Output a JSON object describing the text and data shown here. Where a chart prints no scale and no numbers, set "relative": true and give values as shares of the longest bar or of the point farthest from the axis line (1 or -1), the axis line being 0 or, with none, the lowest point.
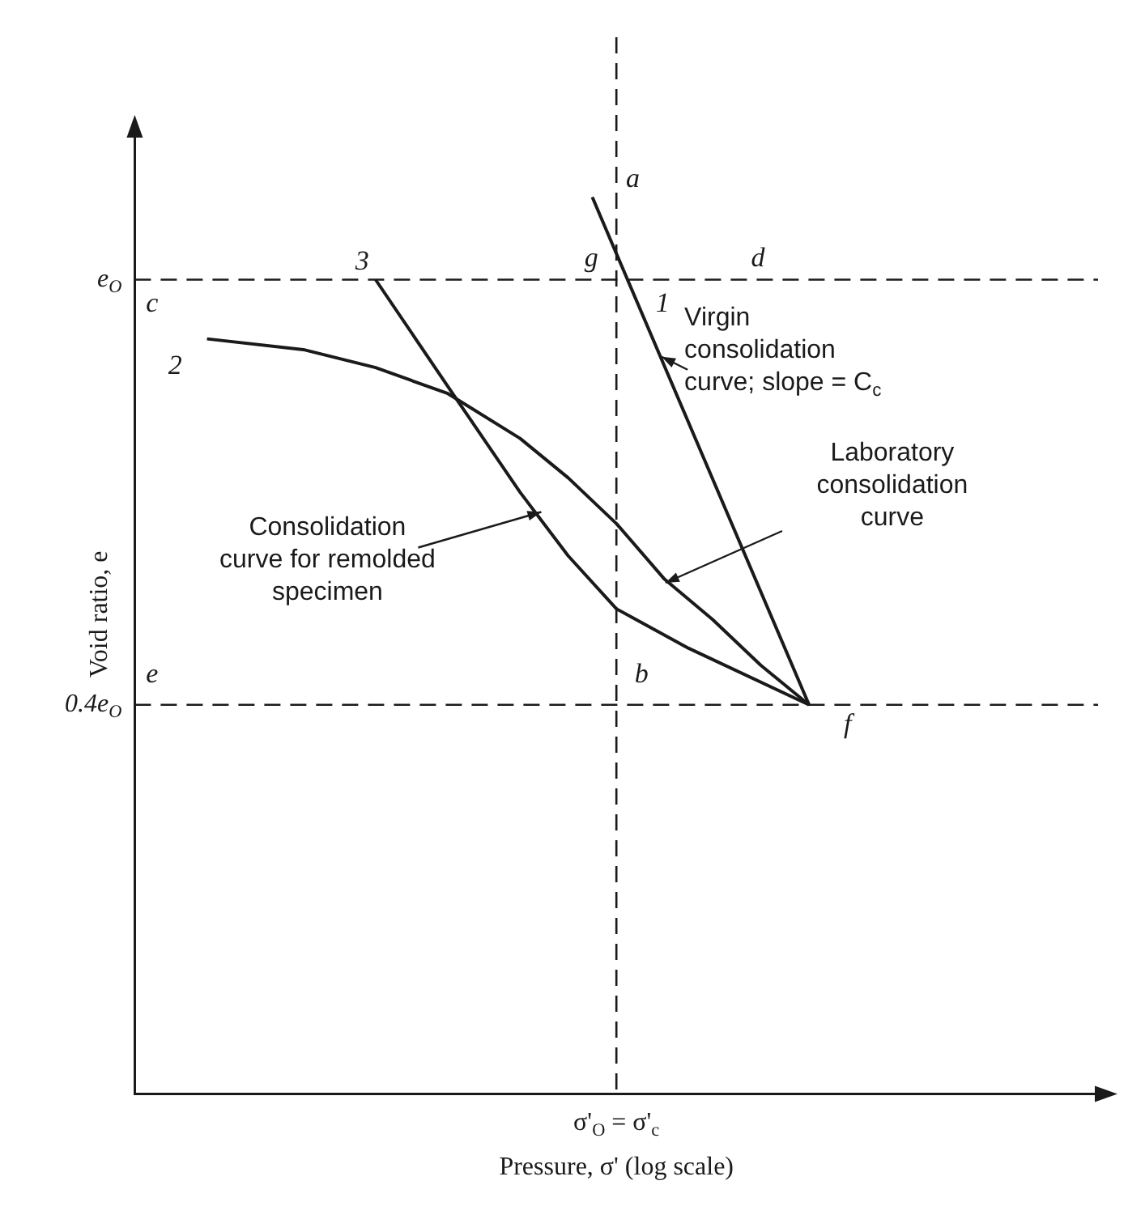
{
  "chart_data": {
    "type": "line",
    "xlabel": "Pressure, σ' (log scale)",
    "ylabel": "Void ratio, e",
    "relative": true,
    "categories": [
      null,
      null,
      null,
      null,
      null,
      null,
      null,
      null,
      null,
      null,
      null,
      null,
      null,
      null,
      null,
      null,
      null,
      null,
      null,
      null,
      null,
      null,
      null,
      null,
      null,
      null,
      null,
      null,
      null,
      null,
      null,
      null,
      null,
      null,
      null,
      null,
      null,
      null,
      null,
      null,
      null
    ],
    "grid": false,
    "legend": false,
    "marker": "none",
    "line_style": "solid",
    "series": [
      {
        "color": "#1a1a1a",
        "values": [
          null,
          null,
          null,
          null,
          null,
          null,
          null,
          null,
          null,
          null,
          null,
          null,
          null,
          null,
          null,
          null,
          null,
          null,
          null,
          1.0,
          null,
          null,
          null,
          null,
          null,
          null,
          null,
          null,
          0.434,
          null,
          null,
          null,
          null,
          null,
          null,
          null,
          null,
          null,
          null,
          null,
          null
        ]
      },
      {
        "color": "#1a1a1a",
        "values": [
          null,
          null,
          null,
          0.842,
          null,
          null,
          null,
          0.83,
          null,
          null,
          0.81,
          null,
          null,
          0.781,
          null,
          null,
          0.731,
          null,
          0.687,
          null,
          0.636,
          null,
          0.574,
          null,
          0.529,
          null,
          0.478,
          null,
          0.434,
          null,
          null,
          null,
          null,
          null,
          null,
          null,
          null,
          null,
          null,
          null,
          null
        ]
      },
      {
        "color": "#1a1a1a",
        "values": [
          null,
          null,
          null,
          null,
          null,
          null,
          null,
          null,
          null,
          null,
          0.908,
          null,
          null,
          0.789,
          null,
          null,
          0.671,
          null,
          0.6,
          null,
          0.541,
          null,
          null,
          0.497,
          null,
          null,
          null,
          null,
          0.434,
          null,
          null,
          null,
          null,
          null,
          null,
          null,
          null,
          null,
          null,
          null,
          null
        ]
      }
    ],
    "ref_lines": [
      {
        "axis": "y",
        "value": 0.908,
        "label": "e$_{O}$",
        "line_style": "dashed",
        "color": "#1a1a1a"
      },
      {
        "axis": "y",
        "value": 0.434,
        "label": "0.4e$_{O}$",
        "line_style": "dashed",
        "color": "#1a1a1a"
      },
      {
        "axis": "x",
        "label": "σ'$_{O}$ = σ'$_{c}$",
        "line_style": "dashed",
        "color": "#1a1a1a"
      }
    ],
    "annotations": [
      "Virgin consolidation curve; slope = C$_{c}$",
      "Laboratory consolidation curve",
      "Consolidation curve for remolded specimen",
      "a",
      "g",
      "d",
      "1",
      "c",
      "3",
      "2",
      "e",
      "b",
      "f"
    ]
  }
}
